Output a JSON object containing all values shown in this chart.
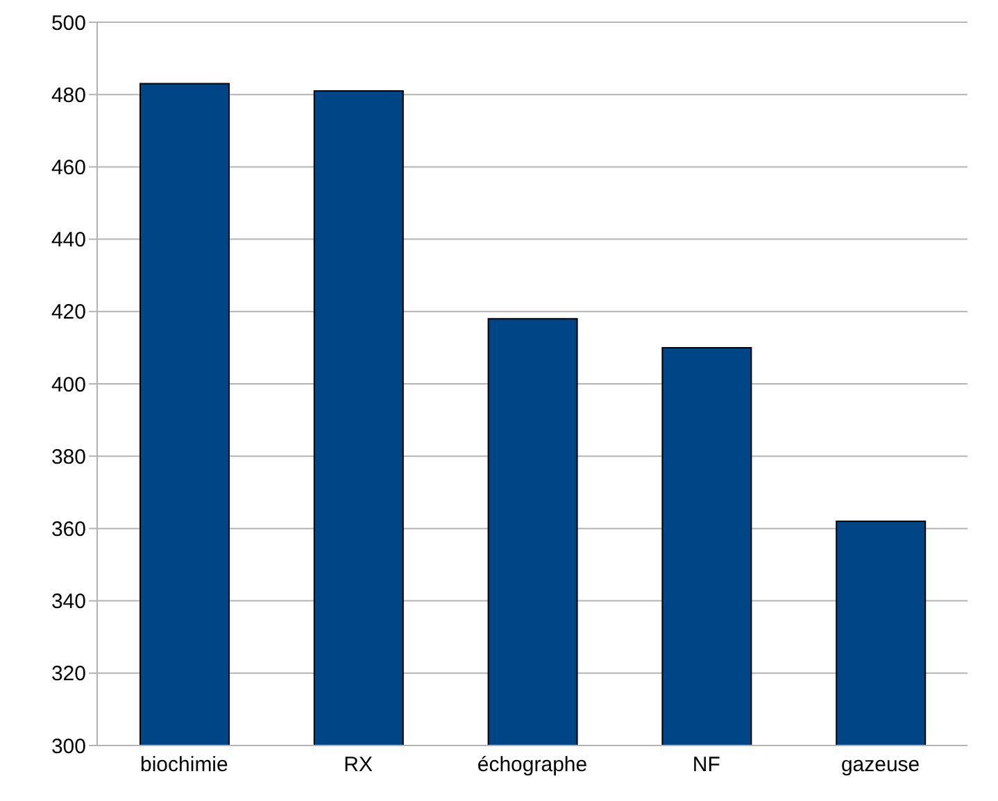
{
  "chart_data": {
    "type": "bar",
    "categories": [
      "biochimie",
      "RX",
      "échographe",
      "NF",
      "gazeuse"
    ],
    "values": [
      483,
      481,
      418,
      410,
      362
    ],
    "color": "#004586",
    "ylim": [
      300,
      500
    ],
    "yticks": [
      300,
      320,
      340,
      360,
      380,
      400,
      420,
      440,
      460,
      480,
      500
    ],
    "grid": "y"
  }
}
